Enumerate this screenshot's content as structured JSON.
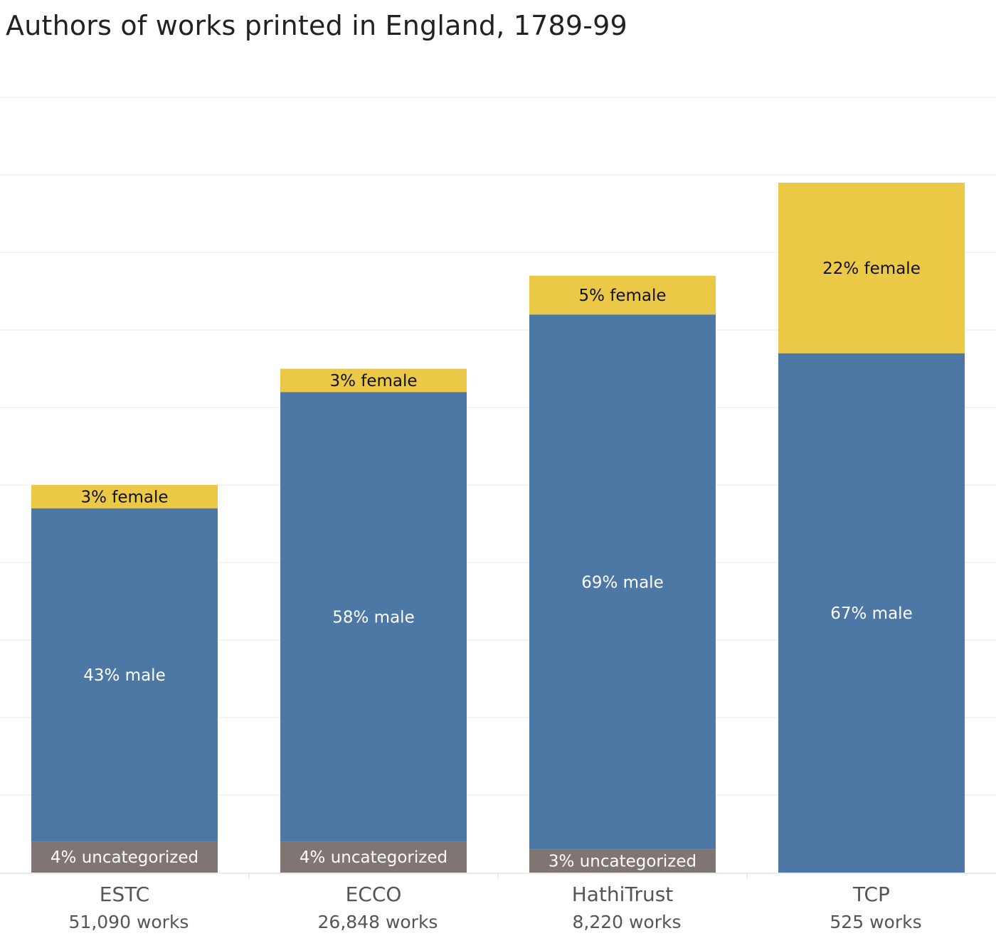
{
  "chart_data": {
    "type": "bar",
    "stacked": true,
    "title": "Authors of works printed in England, 1789-99",
    "xlabel": "",
    "ylabel": "",
    "grid": true,
    "categories": [
      "ESTC",
      "ECCO",
      "HathiTrust",
      "TCP"
    ],
    "category_subtitles": [
      "51,090 works",
      "26,848 works",
      "8,220 works",
      "525 works"
    ],
    "ylim": [
      0,
      100
    ],
    "series": [
      {
        "key": "uncategorized",
        "color": "#7f7572",
        "text_color": "#ffffff",
        "values": [
          4,
          4,
          3,
          0
        ],
        "labels": [
          "4% uncategorized",
          "4% uncategorized",
          "3% uncategorized",
          ""
        ]
      },
      {
        "key": "male",
        "color": "#4d78a6",
        "text_color": "#ffffff",
        "values": [
          43,
          58,
          69,
          67
        ],
        "labels": [
          "43% male",
          "58% male",
          "69% male",
          "67% male"
        ]
      },
      {
        "key": "female",
        "color": "#ebc846",
        "text_color": "#111111",
        "values": [
          3,
          3,
          5,
          22
        ],
        "labels": [
          "3% female",
          "3% female",
          "5% female",
          "22% female"
        ]
      }
    ]
  }
}
